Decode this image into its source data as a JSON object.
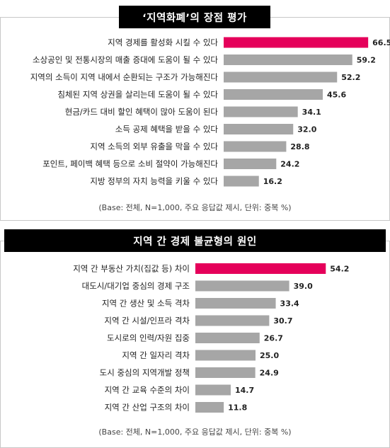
{
  "colors": {
    "highlight": "#e5005a",
    "bar": "#a6a6a6",
    "title_bg": "#000000"
  },
  "chart_data": [
    {
      "type": "bar",
      "orientation": "horizontal",
      "title": "‘지역화폐’의 장점 평가",
      "categories": [
        "지역 경제를 활성화 시킬 수 있다",
        "소상공인 및 전통시장의 매출 증대에 도움이 될 수 있다",
        "지역의 소득이 지역 내에서 순환되는 구조가 가능해진다",
        "침체된 지역 상권을 살리는데 도움이 될 수 있다",
        "현금/카드 대비 할인 혜택이 많아 도움이 된다",
        "소득 공제 혜택을 받을 수 있다",
        "지역 소득의 외부 유출을 막을 수 있다",
        "포인트, 페이백 혜택 등으로 소비 절약이 가능해진다",
        "지방 정부의 자치 능력을 키울 수 있다"
      ],
      "values": [
        66.5,
        59.2,
        52.2,
        45.6,
        34.1,
        32.0,
        28.8,
        24.2,
        16.2
      ],
      "value_labels": [
        "66.5",
        "59.2",
        "52.2",
        "45.6",
        "34.1",
        "32.0",
        "28.8",
        "24.2",
        "16.2"
      ],
      "highlight_index": 0,
      "xlim": [
        0,
        70
      ],
      "note": "(Base: 전체, N=1,000, 주요 응답값 제시, 단위: 중복 %)"
    },
    {
      "type": "bar",
      "orientation": "horizontal",
      "title": "지역 간 경제 불균형의 원인",
      "categories": [
        "지역 간 부동산 가치(집값 등) 차이",
        "대도시/대기업 중심의 경제 구조",
        "지역 간 생산 및 소득 격차",
        "지역 간 시설/인프라 격차",
        "도시로의 인력/자원 집중",
        "지역 간 일자리 격차",
        "도시 중심의 지역개발 정책",
        "지역 간 교육 수준의 차이",
        "지역 간 산업 구조의 차이"
      ],
      "values": [
        54.2,
        39.0,
        33.4,
        30.7,
        26.7,
        25.0,
        24.9,
        14.7,
        11.8
      ],
      "value_labels": [
        "54.2",
        "39.0",
        "33.4",
        "30.7",
        "26.7",
        "25.0",
        "24.9",
        "14.7",
        "11.8"
      ],
      "highlight_index": 0,
      "xlim": [
        0,
        70
      ],
      "note": "(Base: 전체, N=1,000, 주요 응답값 제시, 단위: 중복 %)"
    }
  ]
}
